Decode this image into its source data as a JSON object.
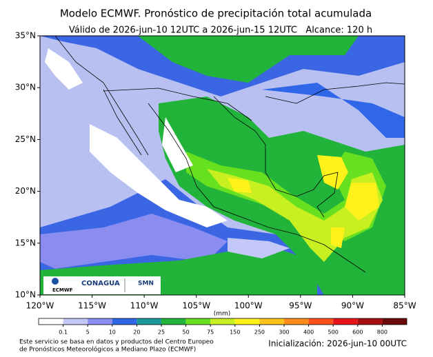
{
  "title": "Modelo ECMWF. Pronóstico de precipitación total acumulada",
  "subtitle": "Válido de 2026-jun-10 12UTC a 2026-jun-15 12UTC   Alcance: 120 h",
  "map": {
    "lat_ticks": [
      "35°N",
      "30°N",
      "25°N",
      "20°N",
      "15°N",
      "10°N"
    ],
    "lon_ticks": [
      "120°W",
      "115°W",
      "110°W",
      "105°W",
      "100°W",
      "95°W",
      "90°W",
      "85°W"
    ]
  },
  "colorbar": {
    "unit": "(mm)",
    "labels": [
      "0.1",
      "5",
      "10",
      "20",
      "25",
      "50",
      "75",
      "150",
      "250",
      "300",
      "400",
      "500",
      "600",
      "800"
    ],
    "colors": [
      "#ffffff",
      "#c4c8f8",
      "#8a8cf0",
      "#2f67e8",
      "#1a9a9a",
      "#22b33a",
      "#66e01f",
      "#c8f020",
      "#fff21a",
      "#ffc21a",
      "#ff8c1a",
      "#ff4f1a",
      "#e8141a",
      "#a8100f",
      "#6a0a0a"
    ]
  },
  "logos": {
    "ecmwf": "ECMWF",
    "conagua": "CONAGUA",
    "smn": "SMN"
  },
  "footer": {
    "source": [
      "Este servicio se basa en datos y productos del Centro Europeo",
      "de Pronósticos Meteorológicos a Mediano Plazo (ECMWF)"
    ],
    "init": "Inicialización: 2026-jun-10 00UTC"
  }
}
